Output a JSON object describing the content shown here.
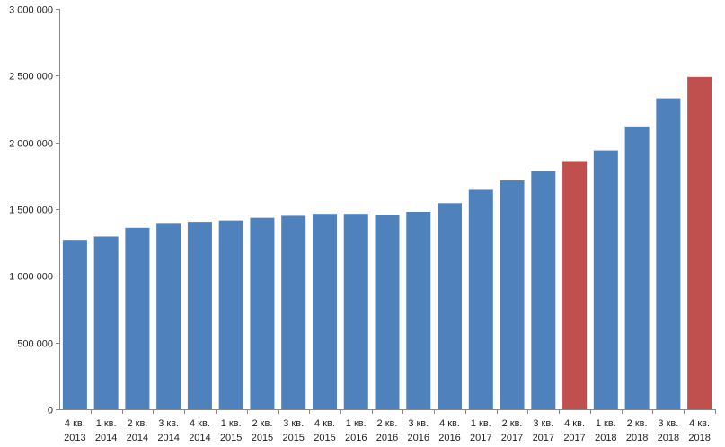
{
  "chart_data": {
    "type": "bar",
    "title": "",
    "xlabel": "",
    "ylabel": "",
    "ylim": [
      0,
      3000000
    ],
    "y_ticks": [
      0,
      500000,
      1000000,
      1500000,
      2000000,
      2500000,
      3000000
    ],
    "y_tick_labels": [
      "0",
      "500 000",
      "1 000 000",
      "1 500 000",
      "2 000 000",
      "2 500 000",
      "3 000 000"
    ],
    "categories": [
      [
        "4 кв.",
        "2013"
      ],
      [
        "1 кв.",
        "2014"
      ],
      [
        "2 кв.",
        "2014"
      ],
      [
        "3 кв.",
        "2014"
      ],
      [
        "4 кв.",
        "2014"
      ],
      [
        "1 кв.",
        "2015"
      ],
      [
        "2 кв.",
        "2015"
      ],
      [
        "3 кв.",
        "2015"
      ],
      [
        "4 кв.",
        "2015"
      ],
      [
        "1 кв.",
        "2016"
      ],
      [
        "2 кв.",
        "2016"
      ],
      [
        "3 кв.",
        "2016"
      ],
      [
        "4 кв.",
        "2016"
      ],
      [
        "1 кв.",
        "2017"
      ],
      [
        "2 кв.",
        "2017"
      ],
      [
        "3 кв.",
        "2017"
      ],
      [
        "4 кв.",
        "2017"
      ],
      [
        "1 кв.",
        "2018"
      ],
      [
        "2 кв.",
        "2018"
      ],
      [
        "3 кв.",
        "2018"
      ],
      [
        "4 кв.",
        "2018"
      ]
    ],
    "values": [
      1270000,
      1295000,
      1360000,
      1390000,
      1405000,
      1415000,
      1435000,
      1450000,
      1465000,
      1465000,
      1455000,
      1480000,
      1545000,
      1645000,
      1715000,
      1785000,
      1860000,
      1940000,
      2120000,
      2330000,
      2490000
    ],
    "highlighted": [
      16,
      20
    ],
    "grid": false,
    "legend": "none",
    "colors": {
      "bar": "#4F81BD",
      "highlight": "#C0504D",
      "axis": "#888888",
      "text": "#1f1f1f"
    }
  }
}
